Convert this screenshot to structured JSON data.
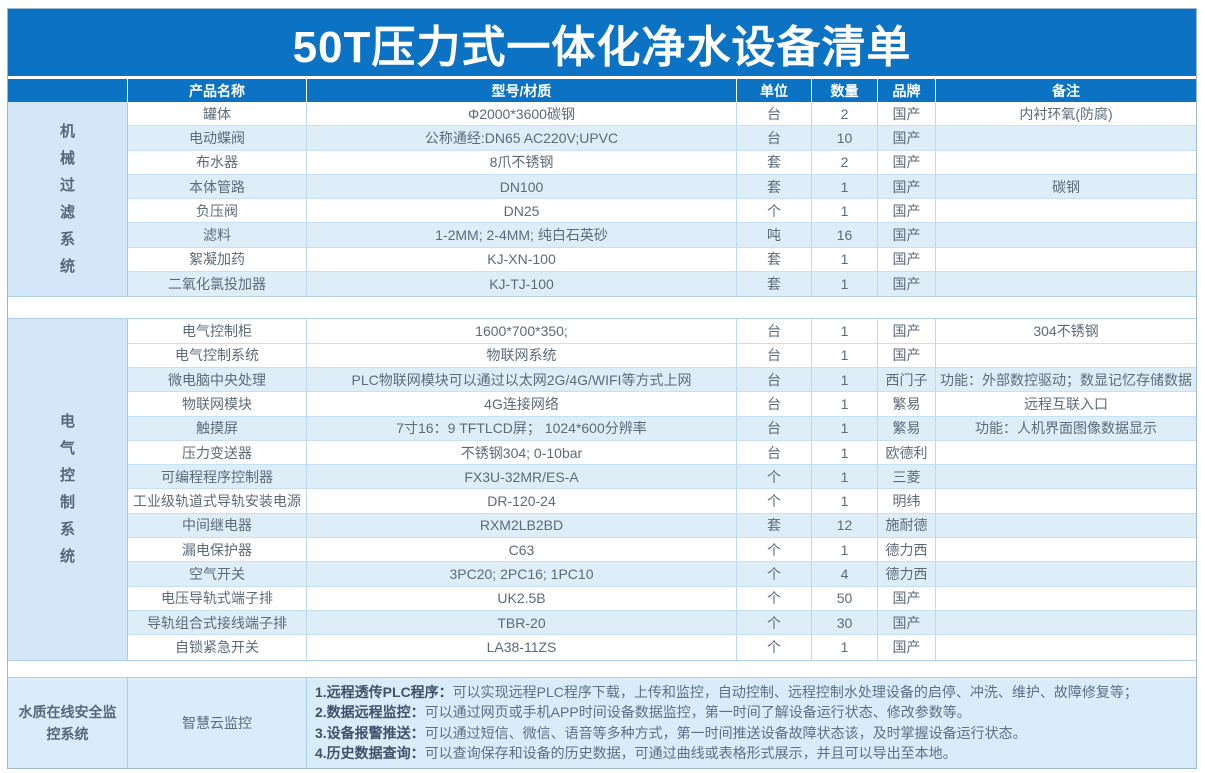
{
  "title": "50T压力式一体化净水设备清单",
  "colors": {
    "accent_blue": "#0b72c4",
    "row_shade": "#ddeef9",
    "side_shade": "#d3e7f8",
    "grid_line": "#aecfec",
    "body_text": "#5c6b78"
  },
  "table": {
    "columns": [
      "产品名称",
      "型号/材质",
      "单位",
      "数量",
      "品牌",
      "备注"
    ],
    "sections": [
      {
        "id": "mechanical",
        "side_label": "机械过滤系统",
        "rows": [
          [
            "罐体",
            "Φ2000*3600碳钢",
            "台",
            "2",
            "国产",
            "内衬环氧(防腐)"
          ],
          [
            "电动蝶阀",
            "公称通经:DN65 AC220V;UPVC",
            "台",
            "10",
            "国产",
            ""
          ],
          [
            "布水器",
            "8爪不锈钢",
            "套",
            "2",
            "国产",
            ""
          ],
          [
            "本体管路",
            "DN100",
            "套",
            "1",
            "国产",
            "碳钢"
          ],
          [
            "负压阀",
            "DN25",
            "个",
            "1",
            "国产",
            ""
          ],
          [
            "滤料",
            "1-2MM; 2-4MM; 纯白石英砂",
            "吨",
            "16",
            "国产",
            ""
          ],
          [
            "絮凝加药",
            "KJ-XN-100",
            "套",
            "1",
            "国产",
            ""
          ],
          [
            "二氧化氯投加器",
            "KJ-TJ-100",
            "套",
            "1",
            "国产",
            ""
          ]
        ]
      },
      {
        "id": "electrical",
        "side_label": "电气控制系统",
        "rows": [
          [
            "电气控制柜",
            "1600*700*350;",
            "台",
            "1",
            "国产",
            "304不锈钢"
          ],
          [
            "电气控制系统",
            "物联网系统",
            "台",
            "1",
            "国产",
            ""
          ],
          [
            "微电脑中央处理",
            "PLC物联网模块可以通过以太网2G/4G/WIFI等方式上网",
            "台",
            "1",
            "西门子",
            "功能：外部数控驱动；数显记忆存储数据"
          ],
          [
            "物联网模块",
            "4G连接网络",
            "台",
            "1",
            "繁易",
            "远程互联入口"
          ],
          [
            "触摸屏",
            "7寸16：9 TFTLCD屏； 1024*600分辨率",
            "台",
            "1",
            "繁易",
            "功能：人机界面图像数据显示"
          ],
          [
            "压力变送器",
            "不锈钢304; 0-10bar",
            "台",
            "1",
            "欧德利",
            ""
          ],
          [
            "可编程程序控制器",
            "FX3U-32MR/ES-A",
            "个",
            "1",
            "三菱",
            ""
          ],
          [
            "工业级轨道式导轨安装电源",
            "DR-120-24",
            "个",
            "1",
            "明纬",
            ""
          ],
          [
            "中间继电器",
            "RXM2LB2BD",
            "套",
            "12",
            "施耐德",
            ""
          ],
          [
            "漏电保护器",
            "C63",
            "个",
            "1",
            "德力西",
            ""
          ],
          [
            "空气开关",
            "3PC20; 2PC16; 1PC10",
            "个",
            "4",
            "德力西",
            ""
          ],
          [
            "电压导轨式端子排",
            "UK2.5B",
            "个",
            "50",
            "国产",
            ""
          ],
          [
            "导轨组合式接线端子排",
            "TBR-20",
            "个",
            "30",
            "国产",
            ""
          ],
          [
            "自锁紧急开关",
            "LA38-11ZS",
            "个",
            "1",
            "国产",
            ""
          ]
        ]
      }
    ],
    "monitor_section": {
      "side_label": "水质在线安全监控系统",
      "product": "智慧云监控",
      "features": [
        {
          "label": "1.远程透传PLC程序：",
          "text": "可以实现远程PLC程序下载，上传和监控，自动控制、远程控制水处理设备的启停、冲洗、维护、故障修复等；"
        },
        {
          "label": "2.数据远程监控：",
          "text": "可以通过网页或手机APP时间设备数据监控，第一时间了解设备运行状态、修改参数等。"
        },
        {
          "label": "3.设备报警推送：",
          "text": "可以通过短信、微信、语音等多种方式，第一时间推送设备故障状态该，及时掌握设备运行状态。"
        },
        {
          "label": "4.历史数据查询：",
          "text": "可以查询保存和设备的历史数据，可通过曲线或表格形式展示，并且可以导出至本地。"
        }
      ]
    }
  }
}
